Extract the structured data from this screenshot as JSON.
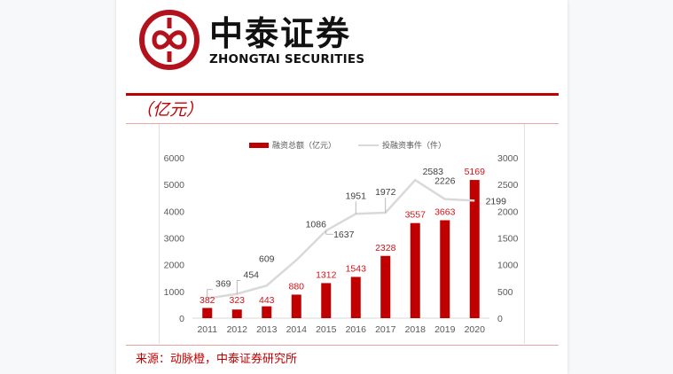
{
  "header": {
    "logo_cn": "中泰证券",
    "logo_en": "ZHONGTAI SECURITIES"
  },
  "unit_label": "（亿元）",
  "source": "来源：动脉橙，中泰证券研究所",
  "colors": {
    "brand_red": "#c00000",
    "bar": "#c00000",
    "line": "#d9d9d9",
    "bar_label": "#d0141b",
    "line_label": "#404040",
    "axis_text": "#595959"
  },
  "chart_data": {
    "type": "bar+line",
    "title": "",
    "categories": [
      "2011",
      "2012",
      "2013",
      "2014",
      "2015",
      "2016",
      "2017",
      "2018",
      "2019",
      "2020"
    ],
    "series": [
      {
        "name": "融资总额（亿元）",
        "type": "bar",
        "axis": "left",
        "values": [
          382,
          323,
          443,
          880,
          1312,
          1543,
          2328,
          3557,
          3663,
          5169
        ]
      },
      {
        "name": "投融资事件（件）",
        "type": "line",
        "axis": "right",
        "values": [
          369,
          454,
          609,
          1086,
          1637,
          1951,
          1972,
          2583,
          2226,
          2199
        ]
      }
    ],
    "left_axis": {
      "ticks": [
        "0",
        "1000",
        "2000",
        "3000",
        "4000",
        "5000",
        "6000"
      ],
      "ylim": [
        0,
        6000
      ]
    },
    "right_axis": {
      "ticks": [
        "0",
        "500",
        "1000",
        "1500",
        "2000",
        "2500",
        "3000"
      ],
      "ylim": [
        0,
        3000
      ]
    },
    "legend_position": "top",
    "grid": false,
    "xlabel": "",
    "ylabel": "亿元"
  }
}
